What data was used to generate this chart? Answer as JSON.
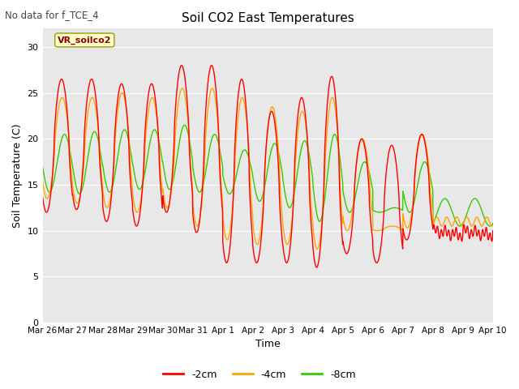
{
  "title": "Soil CO2 East Temperatures",
  "no_data_label": "No data for f_TCE_4",
  "vr_label": "VR_soilco2",
  "xlabel": "Time",
  "ylabel": "Soil Temperature (C)",
  "ylim": [
    0,
    32
  ],
  "yticks": [
    0,
    5,
    10,
    15,
    20,
    25,
    30
  ],
  "colors": {
    "2cm": "#FF0000",
    "4cm": "#FFA500",
    "8cm": "#33CC00"
  },
  "legend_labels": [
    "-2cm",
    "-4cm",
    "-8cm"
  ],
  "background_color": "#E8E8E8",
  "tick_labels": [
    "Mar 26",
    "Mar 27",
    "Mar 28",
    "Mar 29",
    "Mar 30",
    "Mar 31",
    "Apr 1",
    "Apr 2",
    "Apr 3",
    "Apr 4",
    "Apr 5",
    "Apr 6",
    "Apr 7",
    "Apr 8",
    "Apr 9",
    "Apr 10"
  ]
}
